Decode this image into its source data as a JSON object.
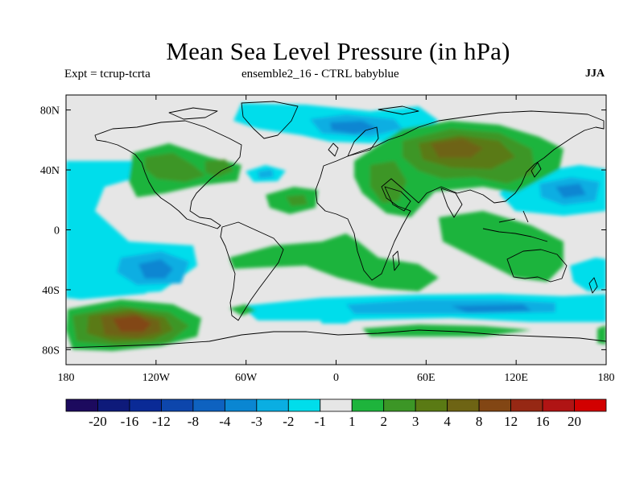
{
  "title": "Mean Sea Level Pressure (in hPa)",
  "subtitle_left": "Expt = tcrup-tcrta",
  "subtitle_center": "ensemble2_16 - CTRL babyblue",
  "season": "JJA",
  "map": {
    "projection": "cylindrical equidistant",
    "lon_range": [
      -180,
      180
    ],
    "lat_range": [
      -90,
      90
    ],
    "background_color": "#e6e6e6",
    "coastline_color": "#000000"
  },
  "x_ticks": [
    {
      "lon": -180,
      "label": "180"
    },
    {
      "lon": -120,
      "label": "120W"
    },
    {
      "lon": -60,
      "label": "60W"
    },
    {
      "lon": 0,
      "label": "0"
    },
    {
      "lon": 60,
      "label": "60E"
    },
    {
      "lon": 120,
      "label": "120E"
    },
    {
      "lon": 180,
      "label": "180"
    }
  ],
  "y_ticks": [
    {
      "lat": 80,
      "label": "80N"
    },
    {
      "lat": 40,
      "label": "40N"
    },
    {
      "lat": 0,
      "label": "0"
    },
    {
      "lat": -40,
      "label": "40S"
    },
    {
      "lat": -80,
      "label": "80S"
    }
  ],
  "colorbar": {
    "colors": [
      "#1c0a5e",
      "#0e1a7a",
      "#0a2a96",
      "#0d46ac",
      "#0e62c0",
      "#0a86d2",
      "#0aaee2",
      "#00ddeb",
      "#e6e6e6",
      "#1eb43c",
      "#3c9626",
      "#5a7a14",
      "#6e6414",
      "#824614",
      "#962814",
      "#b01414",
      "#d20000"
    ],
    "labels": [
      "-20",
      "-16",
      "-12",
      "-8",
      "-4",
      "-3",
      "-2",
      "-1",
      "1",
      "2",
      "3",
      "4",
      "8",
      "12",
      "16",
      "20"
    ]
  }
}
